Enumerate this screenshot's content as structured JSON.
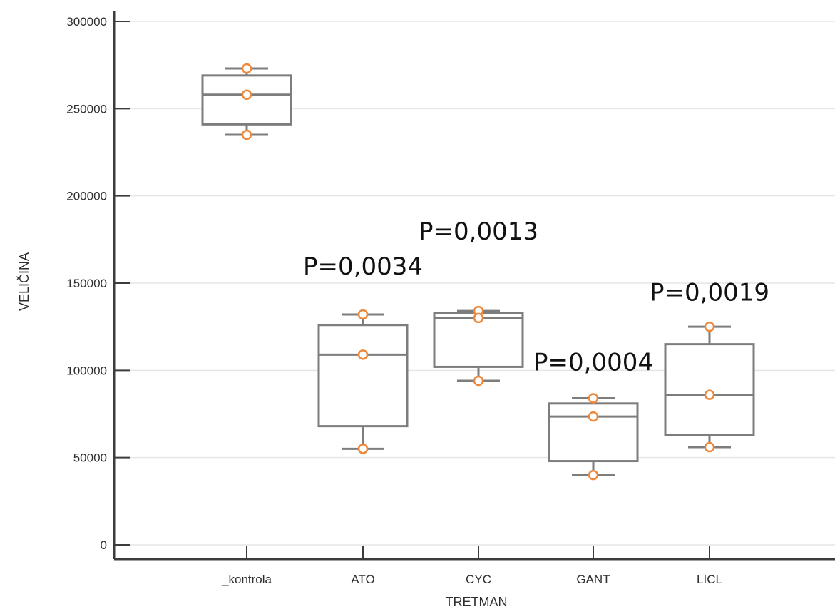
{
  "chart_data": {
    "type": "box",
    "xlabel": "TRETMAN",
    "ylabel": "VELIČINA",
    "ylim": [
      0,
      300000
    ],
    "yticks": [
      0,
      50000,
      100000,
      150000,
      200000,
      250000,
      300000
    ],
    "ytick_labels": [
      "0",
      "50000",
      "100000",
      "150000",
      "200000",
      "250000",
      "300000"
    ],
    "grid": true,
    "categories": [
      "_kontrola",
      "ATO",
      "CYC",
      "GANT",
      "LICL"
    ],
    "boxes": [
      {
        "q1": 241000,
        "median": 258000,
        "q3": 269000,
        "whisker_low": 235000,
        "whisker_high": 273000
      },
      {
        "q1": 68000,
        "median": 109000,
        "q3": 126000,
        "whisker_low": 55000,
        "whisker_high": 132000
      },
      {
        "q1": 102000,
        "median": 130000,
        "q3": 133000,
        "whisker_low": 94000,
        "whisker_high": 134000
      },
      {
        "q1": 48000,
        "median": 73500,
        "q3": 81000,
        "whisker_low": 40000,
        "whisker_high": 84000
      },
      {
        "q1": 63000,
        "median": 86000,
        "q3": 115000,
        "whisker_low": 56000,
        "whisker_high": 125000
      }
    ],
    "points": [
      [
        273000,
        258000,
        235000
      ],
      [
        132000,
        109000,
        55000
      ],
      [
        134000,
        130000,
        94000
      ],
      [
        84000,
        73500,
        40000
      ],
      [
        125000,
        86000,
        56000
      ]
    ],
    "annotations": [
      {
        "text": "P=0,0034",
        "category": "ATO",
        "y": 155000
      },
      {
        "text": "P=0,0013",
        "category": "CYC",
        "y": 175000
      },
      {
        "text": "P=0,0004",
        "category": "GANT",
        "y": 100000
      },
      {
        "text": "P=0,0019",
        "category": "LICL",
        "y": 140000
      }
    ],
    "colors": {
      "box": "#7d7d7d",
      "point": "#f0883a",
      "axis": "#3c3c3c",
      "grid": "#e6e6e6"
    }
  }
}
